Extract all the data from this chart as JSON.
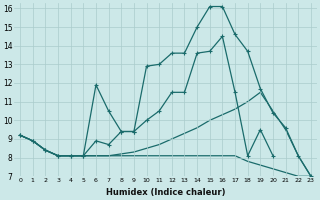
{
  "xlabel": "Humidex (Indice chaleur)",
  "bg_color": "#cce8e8",
  "grid_color": "#aacccc",
  "line_color": "#1a6b6b",
  "xlim": [
    -0.5,
    23.5
  ],
  "ylim": [
    7,
    16.3
  ],
  "yticks": [
    7,
    8,
    9,
    10,
    11,
    12,
    13,
    14,
    15,
    16
  ],
  "xticks": [
    0,
    1,
    2,
    3,
    4,
    5,
    6,
    7,
    8,
    9,
    10,
    11,
    12,
    13,
    14,
    15,
    16,
    17,
    18,
    19,
    20,
    21,
    22,
    23
  ],
  "line_top_x": [
    0,
    1,
    2,
    3,
    4,
    5,
    6,
    7,
    8,
    9,
    10,
    11,
    12,
    13,
    14,
    15,
    16,
    17,
    18,
    19,
    20,
    21,
    22,
    23
  ],
  "line_top_y": [
    9.2,
    8.9,
    8.4,
    8.1,
    8.1,
    8.1,
    11.9,
    10.5,
    9.4,
    9.4,
    12.9,
    13.0,
    13.6,
    13.6,
    15.0,
    16.1,
    16.1,
    14.6,
    13.7,
    11.7,
    10.4,
    9.6,
    8.1,
    7.0
  ],
  "line_mid_x": [
    0,
    1,
    2,
    3,
    4,
    5,
    6,
    7,
    8,
    9,
    10,
    11,
    12,
    13,
    14,
    15,
    16,
    17,
    18,
    19,
    20
  ],
  "line_mid_y": [
    9.2,
    8.9,
    8.4,
    8.1,
    8.1,
    8.1,
    8.9,
    8.7,
    9.4,
    9.4,
    10.0,
    10.5,
    11.5,
    11.5,
    13.6,
    13.7,
    14.5,
    11.5,
    8.1,
    9.5,
    8.1
  ],
  "line_rise_x": [
    0,
    1,
    2,
    3,
    4,
    5,
    6,
    7,
    8,
    9,
    10,
    11,
    12,
    13,
    14,
    15,
    16,
    17,
    18,
    19,
    20,
    21,
    22,
    23
  ],
  "line_rise_y": [
    9.2,
    8.9,
    8.4,
    8.1,
    8.1,
    8.1,
    8.1,
    8.1,
    8.2,
    8.3,
    8.5,
    8.7,
    9.0,
    9.3,
    9.6,
    10.0,
    10.3,
    10.6,
    11.0,
    11.5,
    10.5,
    9.5,
    8.1,
    7.0
  ],
  "line_flat_x": [
    0,
    1,
    2,
    3,
    4,
    5,
    6,
    7,
    8,
    9,
    10,
    11,
    12,
    13,
    14,
    15,
    16,
    17,
    18,
    19,
    20,
    21,
    22,
    23
  ],
  "line_flat_y": [
    9.2,
    8.9,
    8.4,
    8.1,
    8.1,
    8.1,
    8.1,
    8.1,
    8.1,
    8.1,
    8.1,
    8.1,
    8.1,
    8.1,
    8.1,
    8.1,
    8.1,
    8.1,
    7.8,
    7.6,
    7.4,
    7.2,
    7.0,
    7.0
  ]
}
